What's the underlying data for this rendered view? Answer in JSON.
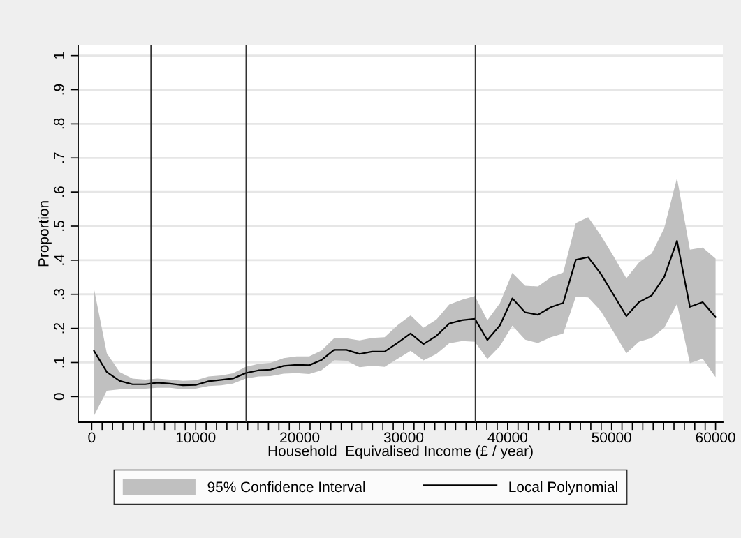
{
  "chart_data": {
    "type": "line",
    "xlabel": "Household  Equivalised Income (£ / year)",
    "ylabel": "Proportion",
    "annotations": [
      "95% Confidence Interval"
    ],
    "x": [
      220,
      1450,
      2690,
      3920,
      5150,
      6310,
      7540,
      8770,
      10000,
      11230,
      12460,
      13580,
      14810,
      16040,
      17200,
      18460,
      19690,
      20920,
      22080,
      23310,
      24500,
      25770,
      26960,
      28170,
      29440,
      30670,
      31910,
      33150,
      34380,
      35620,
      36850,
      38050,
      39260,
      40450,
      41690,
      42920,
      44160,
      45350,
      46560,
      47750,
      48940,
      50180,
      51420,
      52630,
      53870,
      55060,
      56290,
      57530,
      58760,
      60000
    ],
    "series": [
      {
        "name": "Local Polynomial",
        "color": "#000000",
        "values": [
          0.134,
          0.072,
          0.046,
          0.036,
          0.036,
          0.041,
          0.038,
          0.033,
          0.034,
          0.045,
          0.049,
          0.053,
          0.069,
          0.077,
          0.079,
          0.09,
          0.093,
          0.092,
          0.107,
          0.137,
          0.137,
          0.125,
          0.132,
          0.132,
          0.158,
          0.185,
          0.154,
          0.178,
          0.214,
          0.224,
          0.228,
          0.166,
          0.209,
          0.288,
          0.247,
          0.24,
          0.262,
          0.275,
          0.401,
          0.409,
          0.361,
          0.299,
          0.236,
          0.277,
          0.297,
          0.351,
          0.457,
          0.263,
          0.277,
          0.233
        ],
        "upper": [
          0.316,
          0.127,
          0.072,
          0.053,
          0.05,
          0.053,
          0.05,
          0.046,
          0.048,
          0.059,
          0.062,
          0.068,
          0.087,
          0.096,
          0.099,
          0.113,
          0.118,
          0.118,
          0.135,
          0.171,
          0.171,
          0.165,
          0.172,
          0.174,
          0.21,
          0.238,
          0.202,
          0.226,
          0.27,
          0.284,
          0.295,
          0.224,
          0.274,
          0.363,
          0.325,
          0.323,
          0.35,
          0.364,
          0.509,
          0.526,
          0.474,
          0.412,
          0.347,
          0.393,
          0.42,
          0.494,
          0.641,
          0.431,
          0.437,
          0.405
        ],
        "lower": [
          -0.056,
          0.017,
          0.021,
          0.021,
          0.023,
          0.026,
          0.026,
          0.021,
          0.023,
          0.031,
          0.033,
          0.038,
          0.053,
          0.059,
          0.06,
          0.067,
          0.069,
          0.066,
          0.077,
          0.106,
          0.105,
          0.086,
          0.09,
          0.087,
          0.111,
          0.134,
          0.106,
          0.125,
          0.156,
          0.163,
          0.161,
          0.11,
          0.148,
          0.208,
          0.167,
          0.157,
          0.174,
          0.185,
          0.293,
          0.291,
          0.252,
          0.19,
          0.127,
          0.161,
          0.172,
          0.202,
          0.272,
          0.098,
          0.111,
          0.057
        ]
      }
    ],
    "ref_lines": [
      {
        "axis": "x",
        "value": 5700,
        "color": "#333333"
      },
      {
        "axis": "x",
        "value": 14850,
        "color": "#333333"
      },
      {
        "axis": "x",
        "value": 36900,
        "color": "#333333"
      }
    ],
    "xlim": [
      -1300,
      60700
    ],
    "ylim": [
      -0.075,
      1.03
    ],
    "xticks": [
      0,
      {
        "value": 1000,
        "label": null
      },
      {
        "value": 2000,
        "label": null
      },
      {
        "value": 3000,
        "label": null
      },
      {
        "value": 4000,
        "label": null
      },
      {
        "value": 5000,
        "label": null
      },
      {
        "value": 6000,
        "label": null
      },
      {
        "value": 7000,
        "label": null
      },
      {
        "value": 8000,
        "label": null
      },
      {
        "value": 9000,
        "label": null
      },
      10000,
      {
        "value": 11000,
        "label": null
      },
      {
        "value": 12000,
        "label": null
      },
      {
        "value": 13000,
        "label": null
      },
      {
        "value": 14000,
        "label": null
      },
      {
        "value": 15000,
        "label": null
      },
      {
        "value": 16000,
        "label": null
      },
      {
        "value": 17000,
        "label": null
      },
      {
        "value": 18000,
        "label": null
      },
      {
        "value": 19000,
        "label": null
      },
      20000,
      {
        "value": 21000,
        "label": null
      },
      {
        "value": 22000,
        "label": null
      },
      {
        "value": 23000,
        "label": null
      },
      {
        "value": 24000,
        "label": null
      },
      {
        "value": 25000,
        "label": null
      },
      {
        "value": 26000,
        "label": null
      },
      {
        "value": 27000,
        "label": null
      },
      {
        "value": 28000,
        "label": null
      },
      {
        "value": 29000,
        "label": null
      },
      30000,
      {
        "value": 31000,
        "label": null
      },
      {
        "value": 32000,
        "label": null
      },
      {
        "value": 33000,
        "label": null
      },
      {
        "value": 34000,
        "label": null
      },
      {
        "value": 35000,
        "label": null
      },
      {
        "value": 36000,
        "label": null
      },
      {
        "value": 37000,
        "label": null
      },
      {
        "value": 38000,
        "label": null
      },
      {
        "value": 39000,
        "label": null
      },
      40000,
      {
        "value": 41000,
        "label": null
      },
      {
        "value": 42000,
        "label": null
      },
      {
        "value": 43000,
        "label": null
      },
      {
        "value": 44000,
        "label": null
      },
      {
        "value": 45000,
        "label": null
      },
      {
        "value": 46000,
        "label": null
      },
      {
        "value": 47000,
        "label": null
      },
      {
        "value": 48000,
        "label": null
      },
      {
        "value": 49000,
        "label": null
      },
      50000,
      {
        "value": 51000,
        "label": null
      },
      {
        "value": 52000,
        "label": null
      },
      {
        "value": 53000,
        "label": null
      },
      {
        "value": 54000,
        "label": null
      },
      {
        "value": 55000,
        "label": null
      },
      {
        "value": 56000,
        "label": null
      },
      {
        "value": 57000,
        "label": null
      },
      {
        "value": 58000,
        "label": null
      },
      {
        "value": 59000,
        "label": null
      },
      60000
    ],
    "yticks": [
      0,
      {
        "value": 0.1,
        "label": ".1"
      },
      {
        "value": 0.2,
        "label": ".2"
      },
      {
        "value": 0.3,
        "label": ".3"
      },
      {
        "value": 0.4,
        "label": ".4"
      },
      {
        "value": 0.5,
        "label": ".5"
      },
      {
        "value": 0.6,
        "label": ".6"
      },
      {
        "value": 0.7,
        "label": ".7"
      },
      {
        "value": 0.8,
        "label": ".8"
      },
      {
        "value": 0.9,
        "label": ".9"
      },
      1
    ],
    "grid": "y",
    "legend": "bottom",
    "marker": "none",
    "line_style": "solid"
  }
}
